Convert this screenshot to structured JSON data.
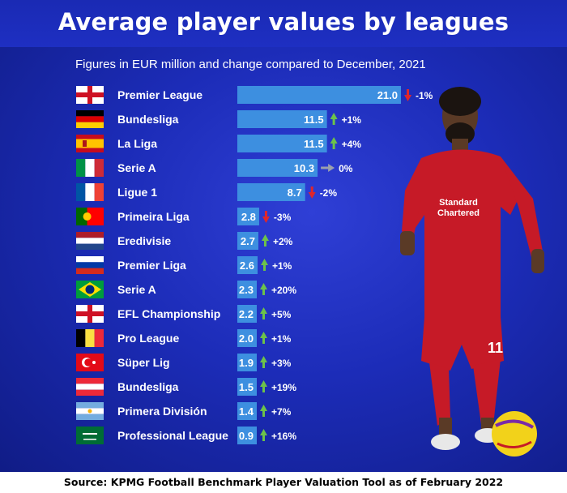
{
  "title": "Average player values by leagues",
  "subtitle": "Figures in EUR million and change compared to December, 2021",
  "source": "Source: KPMG Football Benchmark Player Valuation Tool as of February 2022",
  "colors": {
    "background": "#1c2cb8",
    "bar": "#3d8fe0",
    "up_arrow": "#6cc24a",
    "down_arrow": "#e0262b",
    "flat_arrow": "#9aa0ad",
    "text": "#ffffff"
  },
  "player_image": {
    "shirt_text": "Standard Chartered"
  },
  "chart_data": {
    "type": "bar",
    "orientation": "horizontal",
    "unit": "EUR million",
    "categories": [
      "Premier League",
      "Bundesliga",
      "La Liga",
      "Serie A",
      "Ligue 1",
      "Primeira Liga",
      "Eredivisie",
      "Premier Liga",
      "Serie A",
      "EFL Championship",
      "Pro League",
      "Süper Lig",
      "Bundesliga",
      "Primera División",
      "Professional League"
    ],
    "flags": [
      "flag-england-icon",
      "flag-germany-icon",
      "flag-spain-icon",
      "flag-italy-icon",
      "flag-france-icon",
      "flag-portugal-icon",
      "flag-netherlands-icon",
      "flag-russia-icon",
      "flag-brazil-icon",
      "flag-england-icon",
      "flag-belgium-icon",
      "flag-turkey-icon",
      "flag-austria-icon",
      "flag-argentina-icon",
      "flag-saudi-arabia-icon"
    ],
    "values": [
      21.0,
      11.5,
      11.5,
      10.3,
      8.7,
      2.8,
      2.7,
      2.6,
      2.3,
      2.2,
      2.0,
      1.9,
      1.5,
      1.4,
      0.9
    ],
    "value_labels": [
      "21.0",
      "11.5",
      "11.5",
      "10.3",
      "8.7",
      "2.8",
      "2.7",
      "2.6",
      "2.3",
      "2.2",
      "2.0",
      "1.9",
      "1.5",
      "1.4",
      "0.9"
    ],
    "changes": [
      "-1%",
      "+1%",
      "+4%",
      "0%",
      "-2%",
      "-3%",
      "+2%",
      "+1%",
      "+20%",
      "+5%",
      "+1%",
      "+3%",
      "+19%",
      "+7%",
      "+16%"
    ],
    "change_direction": [
      "down",
      "up",
      "up",
      "flat",
      "down",
      "down",
      "up",
      "up",
      "up",
      "up",
      "up",
      "up",
      "up",
      "up",
      "up"
    ]
  }
}
